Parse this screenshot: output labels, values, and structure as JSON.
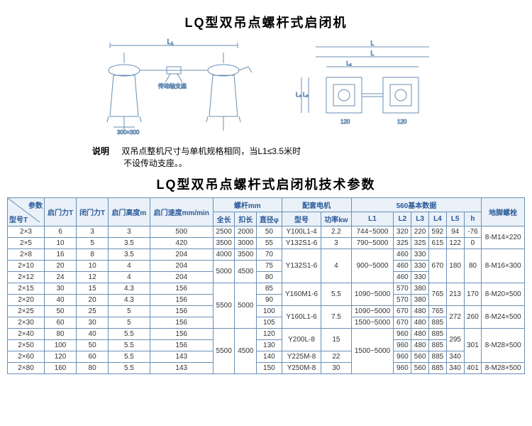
{
  "title": "LQ型双吊点螺杆式启闭机",
  "note_label": "说明",
  "note_text1": "双吊点整机尺寸与单机规格相同，当L1≤3.5米时",
  "note_text2": "不设传动支座。。",
  "table_title": "LQ型双吊点螺杆式启闭机技术参数",
  "headers": {
    "param": "参数",
    "model": "型号T",
    "open_force": "启门力T",
    "close_force": "闭门力T",
    "open_height": "启门高度m",
    "open_speed": "启门速度mm/min",
    "screw": "螺杆mm",
    "full_len": "全长",
    "buckle_len": "扣长",
    "diameter": "直径φ",
    "motor": "配套电机",
    "motor_model": "型号",
    "power": "功率kw",
    "data560": "560基本数据",
    "L1": "L1",
    "L2": "L2",
    "L3": "L3",
    "L4": "L4",
    "L5": "L5",
    "h": "h",
    "bolt": "地脚螺栓"
  },
  "rows": [
    {
      "m": "2×3",
      "of": "6",
      "cf": "3",
      "oh": "3",
      "os": "500",
      "fl": "2500",
      "bl": "2000",
      "d": "50",
      "mm": "Y100L1-4",
      "p": "2.2",
      "l1": "744~5000",
      "l2": "320",
      "l3": "220",
      "l4": "592",
      "l5": "94",
      "h": "-76",
      "bolt": "8-M14×220"
    },
    {
      "m": "2×5",
      "of": "10",
      "cf": "5",
      "oh": "3.5",
      "os": "420",
      "fl": "3500",
      "bl": "3000",
      "d": "55",
      "mm": "Y132S1-6",
      "p": "3",
      "l1": "790~5000",
      "l2": "325",
      "l3": "325",
      "l4": "615",
      "l5": "122",
      "h": "0",
      "bolt": ""
    },
    {
      "m": "2×8",
      "of": "16",
      "cf": "8",
      "oh": "3.5",
      "os": "204",
      "fl": "4000",
      "bl": "3500",
      "d": "70",
      "mm": "",
      "p": "",
      "l1": "",
      "l2": "460",
      "l3": "330",
      "l4": "",
      "l5": "",
      "h": "",
      "bolt": ""
    },
    {
      "m": "2×10",
      "of": "20",
      "cf": "10",
      "oh": "4",
      "os": "204",
      "fl": "",
      "bl": "",
      "d": "75",
      "mm": "Y132S1-6",
      "p": "4",
      "l1": "900~5000",
      "l2": "460",
      "l3": "330",
      "l4": "670",
      "l5": "180",
      "h": "80",
      "bolt": "8-M16×300"
    },
    {
      "m": "2×12",
      "of": "24",
      "cf": "12",
      "oh": "4",
      "os": "204",
      "fl": "",
      "bl": "",
      "d": "80",
      "mm": "",
      "p": "",
      "l1": "",
      "l2": "460",
      "l3": "330",
      "l4": "",
      "l5": "",
      "h": "",
      "bolt": ""
    },
    {
      "m": "2×15",
      "of": "30",
      "cf": "15",
      "oh": "4.3",
      "os": "156",
      "fl": "",
      "bl": "",
      "d": "85",
      "mm": "Y160M1-6",
      "p": "5.5",
      "l1": "1090~5000",
      "l2": "570",
      "l3": "380",
      "l4": "765",
      "l5": "213",
      "h": "170",
      "bolt": "8-M20×500"
    },
    {
      "m": "2×20",
      "of": "40",
      "cf": "20",
      "oh": "4.3",
      "os": "156",
      "fl": "",
      "bl": "",
      "d": "90",
      "mm": "",
      "p": "",
      "l1": "",
      "l2": "570",
      "l3": "380",
      "l4": "",
      "l5": "",
      "h": "",
      "bolt": ""
    },
    {
      "m": "2×25",
      "of": "50",
      "cf": "25",
      "oh": "5",
      "os": "156",
      "fl": "",
      "bl": "",
      "d": "100",
      "mm": "Y160L1-6",
      "p": "7.5",
      "l1": "1090~5000",
      "l2": "670",
      "l3": "480",
      "l4": "765",
      "l5": "272",
      "h": "260",
      "bolt": "8-M24×500"
    },
    {
      "m": "2×30",
      "of": "60",
      "cf": "30",
      "oh": "5",
      "os": "156",
      "fl": "",
      "bl": "",
      "d": "105",
      "mm": "",
      "p": "",
      "l1": "1500~5000",
      "l2": "670",
      "l3": "480",
      "l4": "885",
      "l5": "",
      "h": "",
      "bolt": ""
    },
    {
      "m": "2×40",
      "of": "80",
      "cf": "40",
      "oh": "5.5",
      "os": "156",
      "fl": "",
      "bl": "",
      "d": "120",
      "mm": "Y200L-8",
      "p": "15",
      "l1": "",
      "l2": "960",
      "l3": "480",
      "l4": "885",
      "l5": "295",
      "h": "301",
      "bolt": "8-M28×500"
    },
    {
      "m": "2×50",
      "of": "100",
      "cf": "50",
      "oh": "5.5",
      "os": "156",
      "fl": "",
      "bl": "",
      "d": "130",
      "mm": "",
      "p": "",
      "l1": "",
      "l2": "960",
      "l3": "480",
      "l4": "885",
      "l5": "",
      "h": "",
      "bolt": ""
    },
    {
      "m": "2×60",
      "of": "120",
      "cf": "60",
      "oh": "5.5",
      "os": "143",
      "fl": "",
      "bl": "",
      "d": "140",
      "mm": "Y225M-8",
      "p": "22",
      "l1": "",
      "l2": "960",
      "l3": "560",
      "l4": "885",
      "l5": "340",
      "h": "",
      "bolt": ""
    },
    {
      "m": "2×80",
      "of": "160",
      "cf": "80",
      "oh": "5.5",
      "os": "143",
      "fl": "",
      "bl": "",
      "d": "150",
      "mm": "Y250M-8",
      "p": "30",
      "l1": "",
      "l2": "960",
      "l3": "560",
      "l4": "885",
      "l5": "340",
      "h": "401",
      "bolt": "8-M28×500"
    }
  ],
  "diagram": {
    "l1_label": "L₁",
    "base_label": "300×300",
    "support_label": "传动轴支座",
    "l_label": "L",
    "l2_label": "L₂",
    "l3_label": "L₃",
    "l4_label": "L₄"
  }
}
